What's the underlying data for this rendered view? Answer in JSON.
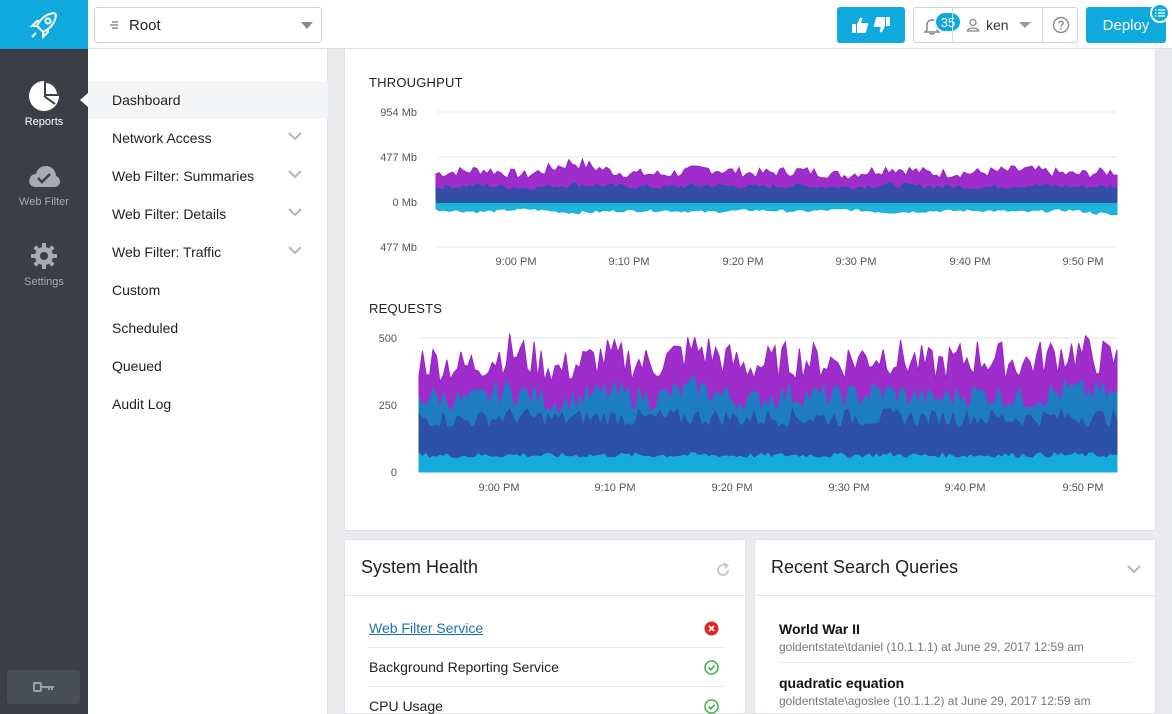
{
  "topbar": {
    "root_label": "Root",
    "notification_count": "35",
    "user_name": "ken",
    "deploy_label": "Deploy"
  },
  "rail": {
    "items": [
      {
        "label": "Reports",
        "icon": "pie-chart-icon",
        "active": true
      },
      {
        "label": "Web Filter",
        "icon": "cloud-check-icon",
        "active": false
      },
      {
        "label": "Settings",
        "icon": "gear-icon",
        "active": false
      }
    ],
    "bottom_icon": "key-icon"
  },
  "nav": {
    "items": [
      {
        "label": "Dashboard",
        "expandable": false,
        "active": true
      },
      {
        "label": "Network Access",
        "expandable": true
      },
      {
        "label": "Web Filter: Summaries",
        "expandable": true
      },
      {
        "label": "Web Filter: Details",
        "expandable": true
      },
      {
        "label": "Web Filter: Traffic",
        "expandable": true
      },
      {
        "label": "Custom",
        "expandable": false
      },
      {
        "label": "Scheduled",
        "expandable": false
      },
      {
        "label": "Queued",
        "expandable": false
      },
      {
        "label": "Audit Log",
        "expandable": false
      }
    ]
  },
  "colors": {
    "accent": "#10a9dd",
    "purple": "#9a22c8",
    "magenta": "#a12ec4",
    "navy": "#2e4fa6",
    "teal": "#1781bf",
    "cyan": "#13b0dc",
    "error": "#e02424",
    "ok": "#3cb043"
  },
  "chart_data": [
    {
      "type": "area",
      "title": "THROUGHPUT",
      "x_ticks": [
        "9:00 PM",
        "9:10 PM",
        "9:20 PM",
        "9:30 PM",
        "9:40 PM",
        "9:50 PM"
      ],
      "y_ticks": [
        "954 Mb",
        "477 Mb",
        "0 Mb",
        "477 Mb"
      ],
      "ylim": [
        -477,
        954
      ],
      "grid": true,
      "series": [
        {
          "color": "#9a22c8",
          "values": [
            300,
            340,
            280,
            420,
            310,
            290,
            350,
            300,
            330,
            280,
            360,
            300,
            310,
            340,
            290,
            320
          ]
        },
        {
          "color": "#2e4fa6",
          "values": [
            150,
            170,
            140,
            180,
            160,
            150,
            170,
            155,
            165,
            150,
            175,
            160,
            150,
            170,
            155,
            160
          ]
        },
        {
          "color": "#13b0dc",
          "values": [
            -80,
            -100,
            -70,
            -110,
            -90,
            -85,
            -100,
            -80,
            -95,
            -75,
            -105,
            -90,
            -85,
            -100,
            -80,
            -140
          ]
        }
      ]
    },
    {
      "type": "area",
      "title": "REQUESTS",
      "x_ticks": [
        "9:00 PM",
        "9:10 PM",
        "9:20 PM",
        "9:30 PM",
        "9:40 PM",
        "9:50 PM"
      ],
      "y_ticks": [
        "500",
        "250",
        "0"
      ],
      "ylim": [
        0,
        500
      ],
      "grid": true,
      "series": [
        {
          "color": "#9a22c8",
          "values": [
            420,
            390,
            450,
            380,
            430,
            400,
            460,
            390,
            420,
            410,
            440,
            395,
            430,
            405,
            450,
            415
          ]
        },
        {
          "color": "#1781bf",
          "values": [
            280,
            260,
            300,
            250,
            290,
            270,
            310,
            260,
            285,
            275,
            295,
            265,
            290,
            270,
            300,
            280
          ]
        },
        {
          "color": "#2e4fa6",
          "values": [
            200,
            190,
            205,
            195,
            200,
            198,
            202,
            196,
            201,
            199,
            203,
            197,
            200,
            198,
            204,
            200
          ]
        },
        {
          "color": "#13b0dc",
          "values": [
            60,
            58,
            62,
            59,
            61,
            60,
            62,
            58,
            61,
            60,
            62,
            59,
            60,
            61,
            62,
            60
          ]
        }
      ]
    }
  ],
  "health": {
    "title": "System Health",
    "rows": [
      {
        "label": "Web Filter Service",
        "status": "error",
        "link": true
      },
      {
        "label": "Background Reporting Service",
        "status": "ok",
        "link": false
      },
      {
        "label": "CPU Usage",
        "status": "ok",
        "link": false
      }
    ]
  },
  "queries": {
    "title": "Recent Search Queries",
    "items": [
      {
        "query": "World War II",
        "meta": "goldentstate\\tdaniel (10.1.1.1) at June 29, 2017 12:59 am"
      },
      {
        "query": "quadratic equation",
        "meta": "goldentstate\\agoslee (10.1.1.2) at June 29, 2017 12:59 am"
      }
    ]
  }
}
